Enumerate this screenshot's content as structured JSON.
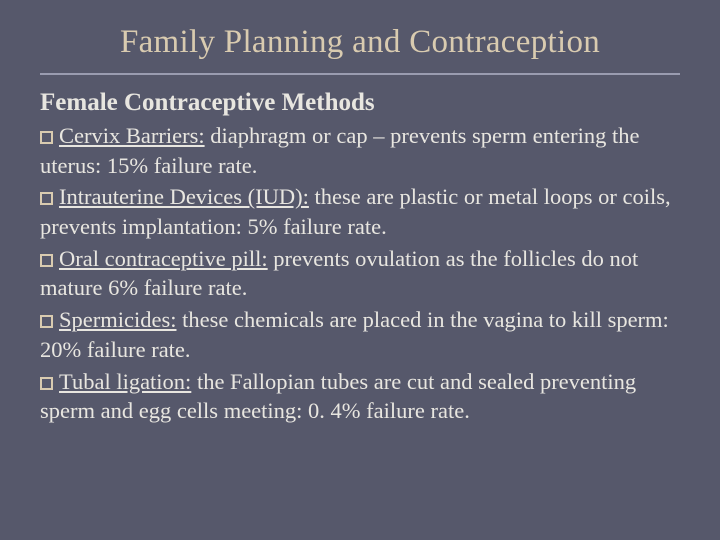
{
  "slide": {
    "background_color": "#56586b",
    "title_color": "#d9cbb0",
    "text_color": "#e8e6e0",
    "divider_color": "#9a9cb0",
    "bullet_border_color": "#d9cbb0",
    "title_fontsize": 33,
    "subtitle_fontsize": 25,
    "body_fontsize": 22.5,
    "title": "Family Planning and Contraception",
    "subtitle": "Female Contraceptive Methods",
    "items": [
      {
        "lead": "Cervix Barriers:",
        "rest": " diaphragm or cap – prevents sperm entering the uterus: 15% failure rate."
      },
      {
        "lead": "Intrauterine Devices (IUD):",
        "rest": " these are plastic or metal loops or coils, prevents implantation: 5% failure rate."
      },
      {
        "lead": "Oral contraceptive pill:",
        "rest": " prevents ovulation as the follicles do not mature 6% failure rate."
      },
      {
        "lead": "Spermicides:",
        "rest": " these chemicals are placed in the vagina to kill sperm: 20% failure rate."
      },
      {
        "lead": "Tubal ligation:",
        "rest": " the Fallopian tubes are cut and sealed preventing sperm and egg cells meeting: 0. 4% failure rate."
      }
    ]
  }
}
